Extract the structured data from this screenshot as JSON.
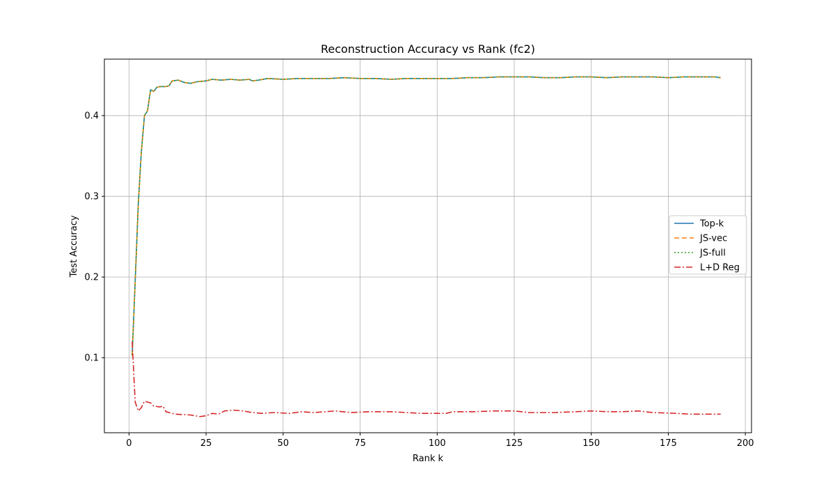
{
  "chart_data": {
    "type": "line",
    "title": "Reconstruction Accuracy vs Rank (fc2)",
    "xlabel": "Rank k",
    "ylabel": "Test Accuracy",
    "xlim": [
      -8,
      202
    ],
    "ylim": [
      0.007,
      0.47
    ],
    "xticks": [
      0,
      25,
      50,
      75,
      100,
      125,
      150,
      175,
      200
    ],
    "yticks": [
      0.1,
      0.2,
      0.3,
      0.4
    ],
    "ytick_labels": [
      "0.1",
      "0.2",
      "0.3",
      "0.4"
    ],
    "grid": true,
    "legend_position": "center-right",
    "series": [
      {
        "name": "Top-k",
        "color": "#1f77b4",
        "dash": "solid",
        "points": [
          [
            1,
            0.103
          ],
          [
            2,
            0.195
          ],
          [
            3,
            0.29
          ],
          [
            4,
            0.355
          ],
          [
            5,
            0.4
          ],
          [
            6,
            0.406
          ],
          [
            7,
            0.432
          ],
          [
            8,
            0.43
          ],
          [
            9,
            0.435
          ],
          [
            10,
            0.436
          ],
          [
            12,
            0.436
          ],
          [
            13,
            0.437
          ],
          [
            14,
            0.443
          ],
          [
            16,
            0.444
          ],
          [
            18,
            0.441
          ],
          [
            20,
            0.44
          ],
          [
            22,
            0.442
          ],
          [
            25,
            0.443
          ],
          [
            27,
            0.445
          ],
          [
            30,
            0.444
          ],
          [
            33,
            0.445
          ],
          [
            36,
            0.444
          ],
          [
            39,
            0.445
          ],
          [
            40,
            0.443
          ],
          [
            42,
            0.444
          ],
          [
            45,
            0.446
          ],
          [
            50,
            0.445
          ],
          [
            55,
            0.446
          ],
          [
            60,
            0.446
          ],
          [
            65,
            0.446
          ],
          [
            70,
            0.447
          ],
          [
            75,
            0.446
          ],
          [
            80,
            0.446
          ],
          [
            85,
            0.445
          ],
          [
            90,
            0.446
          ],
          [
            95,
            0.446
          ],
          [
            100,
            0.446
          ],
          [
            105,
            0.446
          ],
          [
            110,
            0.447
          ],
          [
            115,
            0.447
          ],
          [
            120,
            0.448
          ],
          [
            125,
            0.448
          ],
          [
            130,
            0.448
          ],
          [
            135,
            0.447
          ],
          [
            140,
            0.447
          ],
          [
            145,
            0.448
          ],
          [
            150,
            0.448
          ],
          [
            155,
            0.447
          ],
          [
            160,
            0.448
          ],
          [
            165,
            0.448
          ],
          [
            170,
            0.448
          ],
          [
            175,
            0.447
          ],
          [
            180,
            0.448
          ],
          [
            185,
            0.448
          ],
          [
            190,
            0.448
          ],
          [
            192,
            0.447
          ]
        ]
      },
      {
        "name": "JS-vec",
        "color": "#ff7f0e",
        "dash": "7,4",
        "points": [
          [
            1,
            0.103
          ],
          [
            2,
            0.195
          ],
          [
            3,
            0.29
          ],
          [
            4,
            0.355
          ],
          [
            5,
            0.4
          ],
          [
            6,
            0.406
          ],
          [
            7,
            0.432
          ],
          [
            8,
            0.43
          ],
          [
            9,
            0.435
          ],
          [
            10,
            0.436
          ],
          [
            12,
            0.436
          ],
          [
            13,
            0.437
          ],
          [
            14,
            0.443
          ],
          [
            16,
            0.444
          ],
          [
            18,
            0.441
          ],
          [
            20,
            0.44
          ],
          [
            22,
            0.442
          ],
          [
            25,
            0.443
          ],
          [
            27,
            0.445
          ],
          [
            30,
            0.444
          ],
          [
            33,
            0.445
          ],
          [
            36,
            0.444
          ],
          [
            39,
            0.445
          ],
          [
            40,
            0.443
          ],
          [
            42,
            0.444
          ],
          [
            45,
            0.446
          ],
          [
            50,
            0.445
          ],
          [
            55,
            0.446
          ],
          [
            60,
            0.446
          ],
          [
            65,
            0.446
          ],
          [
            70,
            0.447
          ],
          [
            75,
            0.446
          ],
          [
            80,
            0.446
          ],
          [
            85,
            0.445
          ],
          [
            90,
            0.446
          ],
          [
            95,
            0.446
          ],
          [
            100,
            0.446
          ],
          [
            105,
            0.446
          ],
          [
            110,
            0.447
          ],
          [
            115,
            0.447
          ],
          [
            120,
            0.448
          ],
          [
            125,
            0.448
          ],
          [
            130,
            0.448
          ],
          [
            135,
            0.447
          ],
          [
            140,
            0.447
          ],
          [
            145,
            0.448
          ],
          [
            150,
            0.448
          ],
          [
            155,
            0.447
          ],
          [
            160,
            0.448
          ],
          [
            165,
            0.448
          ],
          [
            170,
            0.448
          ],
          [
            175,
            0.447
          ],
          [
            180,
            0.448
          ],
          [
            185,
            0.448
          ],
          [
            190,
            0.448
          ],
          [
            192,
            0.447
          ]
        ]
      },
      {
        "name": "JS-full",
        "color": "#2ca02c",
        "dash": "2,3",
        "points": [
          [
            1,
            0.103
          ],
          [
            2,
            0.195
          ],
          [
            3,
            0.29
          ],
          [
            4,
            0.355
          ],
          [
            5,
            0.4
          ],
          [
            6,
            0.406
          ],
          [
            7,
            0.432
          ],
          [
            8,
            0.43
          ],
          [
            9,
            0.435
          ],
          [
            10,
            0.436
          ],
          [
            12,
            0.436
          ],
          [
            13,
            0.437
          ],
          [
            14,
            0.443
          ],
          [
            16,
            0.444
          ],
          [
            18,
            0.441
          ],
          [
            20,
            0.44
          ],
          [
            22,
            0.442
          ],
          [
            25,
            0.443
          ],
          [
            27,
            0.445
          ],
          [
            30,
            0.444
          ],
          [
            33,
            0.445
          ],
          [
            36,
            0.444
          ],
          [
            39,
            0.445
          ],
          [
            40,
            0.443
          ],
          [
            42,
            0.444
          ],
          [
            45,
            0.446
          ],
          [
            50,
            0.445
          ],
          [
            55,
            0.446
          ],
          [
            60,
            0.446
          ],
          [
            65,
            0.446
          ],
          [
            70,
            0.447
          ],
          [
            75,
            0.446
          ],
          [
            80,
            0.446
          ],
          [
            85,
            0.445
          ],
          [
            90,
            0.446
          ],
          [
            95,
            0.446
          ],
          [
            100,
            0.446
          ],
          [
            105,
            0.446
          ],
          [
            110,
            0.447
          ],
          [
            115,
            0.447
          ],
          [
            120,
            0.448
          ],
          [
            125,
            0.448
          ],
          [
            130,
            0.448
          ],
          [
            135,
            0.447
          ],
          [
            140,
            0.447
          ],
          [
            145,
            0.448
          ],
          [
            150,
            0.448
          ],
          [
            155,
            0.447
          ],
          [
            160,
            0.448
          ],
          [
            165,
            0.448
          ],
          [
            170,
            0.448
          ],
          [
            175,
            0.447
          ],
          [
            180,
            0.448
          ],
          [
            185,
            0.448
          ],
          [
            190,
            0.448
          ],
          [
            192,
            0.447
          ]
        ]
      },
      {
        "name": "L+D Reg",
        "color": "#d62728",
        "dash": "9,3,2,3",
        "points": [
          [
            1,
            0.12
          ],
          [
            2,
            0.045
          ],
          [
            3,
            0.034
          ],
          [
            4,
            0.038
          ],
          [
            5,
            0.046
          ],
          [
            6,
            0.045
          ],
          [
            7,
            0.044
          ],
          [
            8,
            0.04
          ],
          [
            10,
            0.039
          ],
          [
            11,
            0.04
          ],
          [
            12,
            0.033
          ],
          [
            13,
            0.032
          ],
          [
            15,
            0.03
          ],
          [
            20,
            0.029
          ],
          [
            23,
            0.027
          ],
          [
            25,
            0.028
          ],
          [
            27,
            0.031
          ],
          [
            29,
            0.03
          ],
          [
            31,
            0.034
          ],
          [
            34,
            0.035
          ],
          [
            37,
            0.034
          ],
          [
            40,
            0.032
          ],
          [
            43,
            0.031
          ],
          [
            47,
            0.032
          ],
          [
            52,
            0.031
          ],
          [
            56,
            0.033
          ],
          [
            60,
            0.032
          ],
          [
            67,
            0.034
          ],
          [
            72,
            0.032
          ],
          [
            78,
            0.033
          ],
          [
            85,
            0.033
          ],
          [
            90,
            0.032
          ],
          [
            95,
            0.031
          ],
          [
            100,
            0.031
          ],
          [
            103,
            0.031
          ],
          [
            105,
            0.033
          ],
          [
            112,
            0.033
          ],
          [
            118,
            0.034
          ],
          [
            125,
            0.034
          ],
          [
            130,
            0.032
          ],
          [
            138,
            0.032
          ],
          [
            145,
            0.033
          ],
          [
            150,
            0.034
          ],
          [
            155,
            0.033
          ],
          [
            160,
            0.033
          ],
          [
            165,
            0.034
          ],
          [
            170,
            0.032
          ],
          [
            178,
            0.031
          ],
          [
            182,
            0.03
          ],
          [
            188,
            0.03
          ],
          [
            192,
            0.03
          ]
        ]
      }
    ]
  }
}
